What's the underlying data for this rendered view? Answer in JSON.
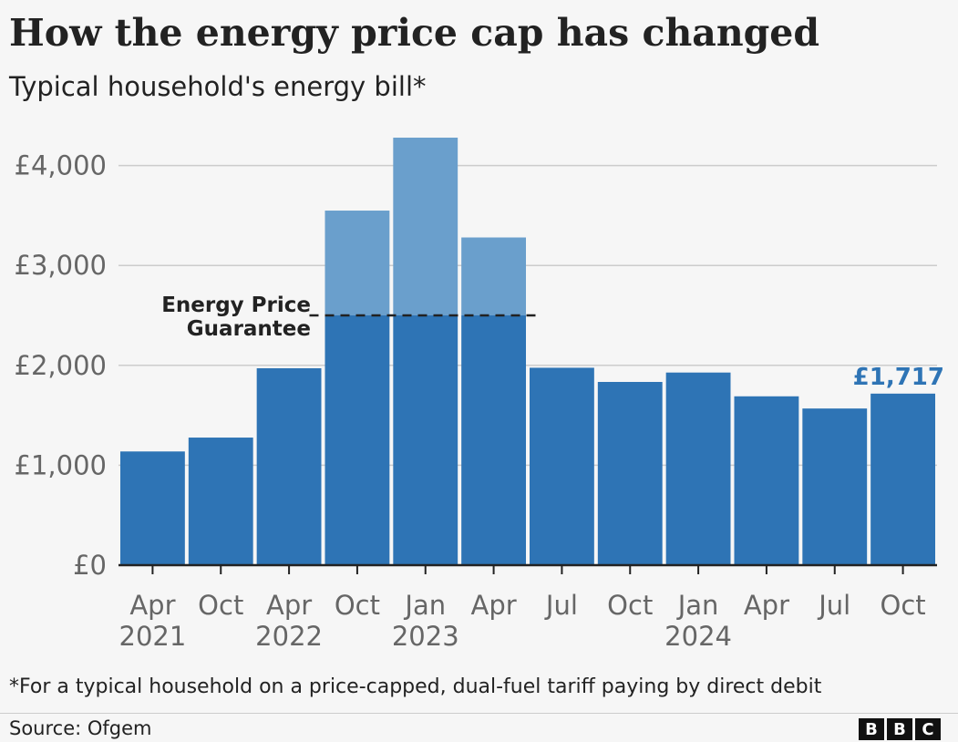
{
  "title": "How the energy price cap has changed",
  "subtitle": "Typical household's energy bill*",
  "footnote": "*For a typical household on a price-capped, dual-fuel tariff paying by direct debit",
  "source": "Source: Ofgem",
  "logo": [
    "B",
    "B",
    "C"
  ],
  "colors": {
    "bar": "#2e74b5",
    "bar_light": "#6a9fcc",
    "grid": "#cccccc",
    "axis": "#222222",
    "tick_text": "#666666",
    "highlight": "#2e74b5"
  },
  "chart_data": {
    "type": "bar",
    "categories": [
      "Apr 2021",
      "Oct 2021",
      "Apr 2022",
      "Oct 2022",
      "Jan 2023",
      "Apr 2023",
      "Jul 2023",
      "Oct 2023",
      "Jan 2024",
      "Apr 2024",
      "Jul 2024",
      "Oct 2024"
    ],
    "x_tick_labels": [
      {
        "month": "Apr",
        "year": "2021"
      },
      {
        "month": "Oct",
        "year": ""
      },
      {
        "month": "Apr",
        "year": "2022"
      },
      {
        "month": "Oct",
        "year": ""
      },
      {
        "month": "Jan",
        "year": "2023"
      },
      {
        "month": "Apr",
        "year": ""
      },
      {
        "month": "Jul",
        "year": ""
      },
      {
        "month": "Oct",
        "year": ""
      },
      {
        "month": "Jan",
        "year": "2024"
      },
      {
        "month": "Apr",
        "year": ""
      },
      {
        "month": "Jul",
        "year": ""
      },
      {
        "month": "Oct",
        "year": ""
      }
    ],
    "values": [
      1138,
      1277,
      1971,
      3549,
      4279,
      3280,
      1976,
      1834,
      1928,
      1690,
      1568,
      1717
    ],
    "price_guarantee": {
      "label_line1": "Energy Price",
      "label_line2": "Guarantee",
      "value": 2500,
      "applies_to": [
        "Oct 2022",
        "Jan 2023",
        "Apr 2023"
      ]
    },
    "y_ticks": [
      0,
      1000,
      2000,
      3000,
      4000
    ],
    "y_tick_labels": [
      "£0",
      "£1,000",
      "£2,000",
      "£3,000",
      "£4,000"
    ],
    "ylim": [
      0,
      4500
    ],
    "grid": true,
    "annotation": {
      "category": "Oct 2024",
      "text": "£1,717"
    }
  }
}
